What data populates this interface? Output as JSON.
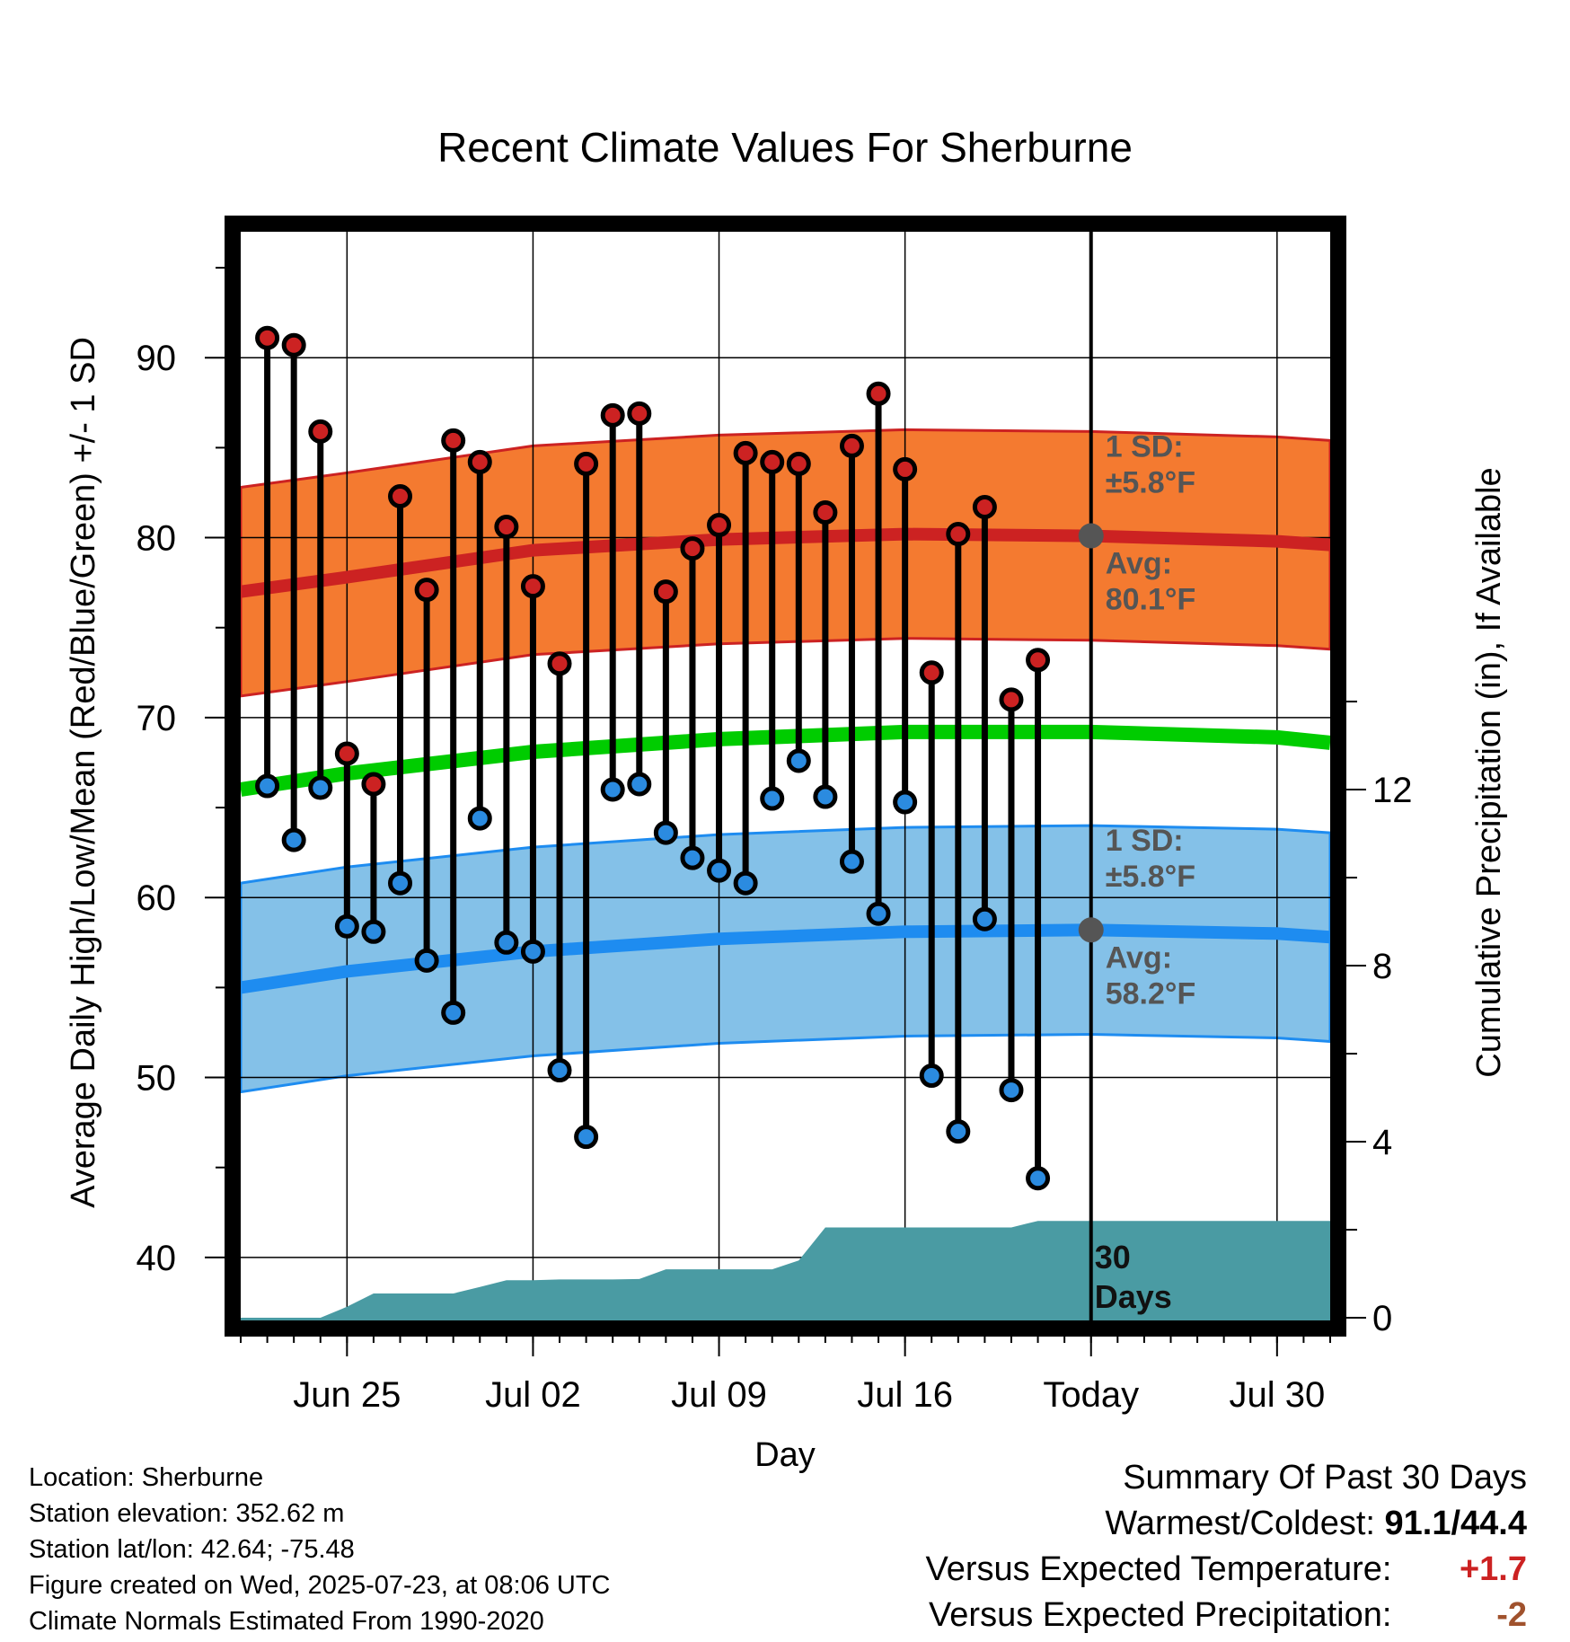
{
  "chart_data": {
    "type": "line",
    "title": "Recent Climate Values For Sherburne",
    "xlabel": "Day",
    "ylabel": "Average Daily High/Low/Mean (Red/Blue/Green) +/- 1 SD",
    "y2label": "Cumulative Precipitation (in), If Available",
    "ylim": [
      36.5,
      97
    ],
    "y2lim": [
      0,
      20
    ],
    "xlim": [
      "2025-06-21",
      "2025-08-01"
    ],
    "x_tick_labels": [
      "Jun 25",
      "Jul 02",
      "Jul 09",
      "Jul 16",
      "Today",
      "Jul 30"
    ],
    "x_tick_dates": [
      "2025-06-25",
      "2025-07-02",
      "2025-07-09",
      "2025-07-16",
      "2025-07-23",
      "2025-07-30"
    ],
    "y_ticks": [
      40,
      50,
      60,
      70,
      80,
      90
    ],
    "y2_ticks": [
      0,
      4,
      8,
      12
    ],
    "grid": true,
    "today": "2025-07-23",
    "annotations": {
      "high_sd_label": "1 SD:",
      "high_sd_value": "±5.8°F",
      "high_avg_label": "Avg:",
      "high_avg_value": "80.1°F",
      "low_sd_label": "1 SD:",
      "low_sd_value": "±5.8°F",
      "low_avg_label": "Avg:",
      "low_avg_value": "58.2°F",
      "days_line1": "30",
      "days_line2": "Days"
    },
    "high_avg_marker": 80.1,
    "low_avg_marker": 58.2,
    "normals": {
      "dates": [
        "2025-06-21",
        "2025-06-25",
        "2025-07-02",
        "2025-07-09",
        "2025-07-16",
        "2025-07-23",
        "2025-07-30",
        "2025-08-01"
      ],
      "normal_high": [
        77.0,
        77.8,
        79.3,
        79.9,
        80.2,
        80.1,
        79.8,
        79.6
      ],
      "normal_low": [
        55.0,
        55.9,
        57.0,
        57.7,
        58.1,
        58.2,
        58.0,
        57.8
      ],
      "normal_mean": [
        66.0,
        66.9,
        68.1,
        68.8,
        69.2,
        69.2,
        68.9,
        68.6
      ],
      "sd": 5.8
    },
    "series": [
      {
        "name": "Daily High",
        "color": "#cc2222",
        "dates": [
          "2025-06-22",
          "2025-06-23",
          "2025-06-24",
          "2025-06-25",
          "2025-06-26",
          "2025-06-27",
          "2025-06-28",
          "2025-06-29",
          "2025-06-30",
          "2025-07-01",
          "2025-07-02",
          "2025-07-03",
          "2025-07-04",
          "2025-07-05",
          "2025-07-06",
          "2025-07-07",
          "2025-07-08",
          "2025-07-09",
          "2025-07-10",
          "2025-07-11",
          "2025-07-12",
          "2025-07-13",
          "2025-07-14",
          "2025-07-15",
          "2025-07-16",
          "2025-07-17",
          "2025-07-18",
          "2025-07-19",
          "2025-07-20",
          "2025-07-21",
          "2025-07-22"
        ],
        "values": [
          91.1,
          90.7,
          85.9,
          68.0,
          66.3,
          82.3,
          77.1,
          85.4,
          84.2,
          80.6,
          77.3,
          73.0,
          84.1,
          86.8,
          86.9,
          77.0,
          79.4,
          80.7,
          84.7,
          84.2,
          84.1,
          81.4,
          85.1,
          88.0,
          83.8,
          72.5,
          80.2,
          81.7,
          71.0,
          73.2,
          null
        ]
      },
      {
        "name": "Daily Low",
        "color": "#2b8be0",
        "dates": [
          "2025-06-22",
          "2025-06-23",
          "2025-06-24",
          "2025-06-25",
          "2025-06-26",
          "2025-06-27",
          "2025-06-28",
          "2025-06-29",
          "2025-06-30",
          "2025-07-01",
          "2025-07-02",
          "2025-07-03",
          "2025-07-04",
          "2025-07-05",
          "2025-07-06",
          "2025-07-07",
          "2025-07-08",
          "2025-07-09",
          "2025-07-10",
          "2025-07-11",
          "2025-07-12",
          "2025-07-13",
          "2025-07-14",
          "2025-07-15",
          "2025-07-16",
          "2025-07-17",
          "2025-07-18",
          "2025-07-19",
          "2025-07-20",
          "2025-07-21",
          "2025-07-22"
        ],
        "values": [
          66.2,
          63.2,
          66.1,
          58.4,
          58.1,
          60.8,
          56.5,
          53.6,
          64.4,
          57.5,
          57.0,
          50.4,
          46.7,
          66.0,
          66.3,
          63.6,
          62.2,
          61.5,
          60.8,
          65.5,
          67.6,
          65.6,
          62.0,
          59.1,
          65.3,
          50.1,
          47.0,
          58.8,
          49.3,
          44.4,
          null
        ]
      },
      {
        "name": "Cumulative Precipitation",
        "color": "#4a9ba3",
        "dates": [
          "2025-06-21",
          "2025-06-24",
          "2025-06-25",
          "2025-06-26",
          "2025-06-28",
          "2025-06-29",
          "2025-06-30",
          "2025-07-01",
          "2025-07-02",
          "2025-07-03",
          "2025-07-04",
          "2025-07-05",
          "2025-07-06",
          "2025-07-07",
          "2025-07-08",
          "2025-07-09",
          "2025-07-10",
          "2025-07-11",
          "2025-07-12",
          "2025-07-13",
          "2025-07-14",
          "2025-07-15",
          "2025-07-16",
          "2025-07-17",
          "2025-07-18",
          "2025-07-19",
          "2025-07-20",
          "2025-07-21",
          "2025-07-22",
          "2025-08-01"
        ],
        "values": [
          0,
          0,
          0.25,
          0.55,
          0.55,
          0.55,
          0.7,
          0.85,
          0.85,
          0.87,
          0.87,
          0.87,
          0.88,
          1.1,
          1.1,
          1.1,
          1.1,
          1.1,
          1.3,
          2.05,
          2.05,
          2.05,
          2.05,
          2.05,
          2.05,
          2.05,
          2.05,
          2.2,
          2.2,
          2.2
        ]
      }
    ]
  },
  "meta": {
    "location": "Location: Sherburne",
    "elevation": "Station elevation: 352.62 m",
    "latlon": "Station lat/lon: 42.64; -75.48",
    "created": "Figure created on Wed, 2025-07-23, at 08:06 UTC",
    "normals": "Climate Normals Estimated From 1990-2020"
  },
  "summary": {
    "title": "Summary Of Past 30 Days",
    "warm_cold_label": "Warmest/Coldest:",
    "warm_cold_value": "91.1/44.4",
    "temp_label": "Versus Expected Temperature:",
    "temp_value": "+1.7",
    "temp_color": "#cc2222",
    "precip_label": "Versus Expected Precipitation:",
    "precip_value": "-2",
    "precip_color": "#a0522d"
  },
  "colors": {
    "high_band": "#f47a30",
    "high_line": "#cc2222",
    "low_band": "#84c1e8",
    "low_line": "#1e8cf0",
    "mean_line": "#00cc00",
    "precip": "#4a9ba3"
  }
}
